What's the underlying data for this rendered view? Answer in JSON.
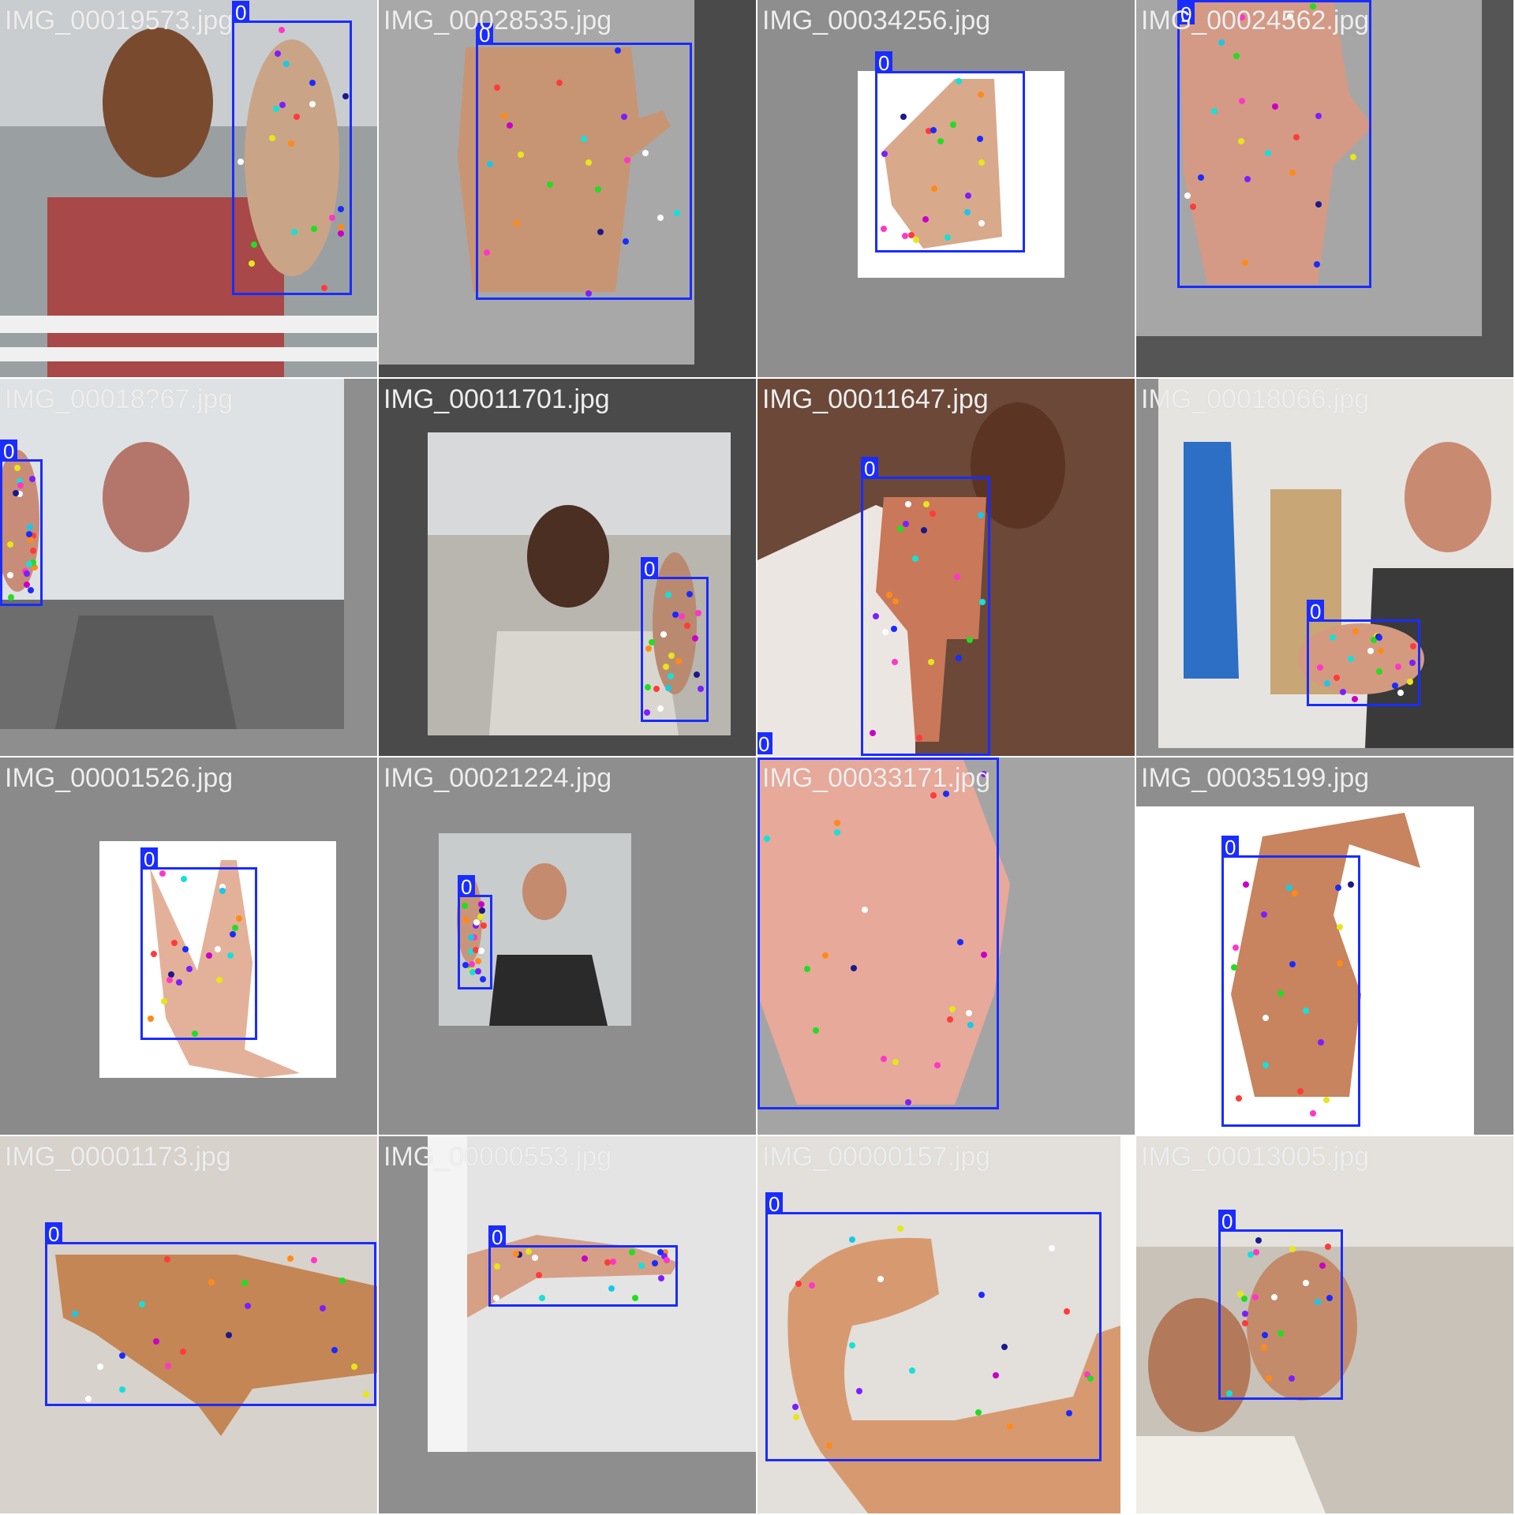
{
  "class_label": "0",
  "keypoint_colors": [
    "#ff3b3b",
    "#ff8a1a",
    "#e6e61a",
    "#22dd22",
    "#16e0d8",
    "#1a2cff",
    "#7b1fff",
    "#ff36c8",
    "#ffffff",
    "#1a1a8c",
    "#c800c8",
    "#18c8e8"
  ],
  "tiles": [
    {
      "filename": "IMG_00019573.jpg"
    },
    {
      "filename": "IMG_00028535.jpg"
    },
    {
      "filename": "IMG_00034256.jpg"
    },
    {
      "filename": "IMG_00024562.jpg"
    },
    {
      "filename": "IMG_00018?67.jpg"
    },
    {
      "filename": "IMG_00011701.jpg"
    },
    {
      "filename": "IMG_00011647.jpg"
    },
    {
      "filename": "IMG_00018066.jpg"
    },
    {
      "filename": "IMG_00001526.jpg"
    },
    {
      "filename": "IMG_00021224.jpg"
    },
    {
      "filename": "IMG_00033171.jpg"
    },
    {
      "filename": "IMG_00035199.jpg"
    },
    {
      "filename": "IMG_00001173.jpg"
    },
    {
      "filename": "IMG_00000553.jpg"
    },
    {
      "filename": "IMG_00000157.jpg"
    },
    {
      "filename": "IMG_00013005.jpg"
    }
  ]
}
